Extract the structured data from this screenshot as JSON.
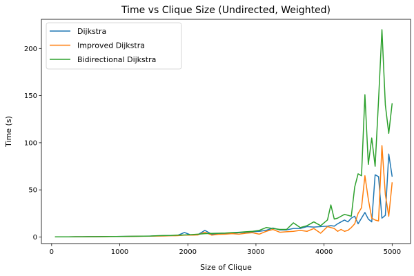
{
  "chart_data": {
    "type": "line",
    "title": "Time vs Clique Size (Undirected, Weighted)",
    "xlabel": "Size of Clique",
    "ylabel": "Time (s)",
    "xlim": [
      -150,
      5270
    ],
    "ylim": [
      -7,
      231
    ],
    "xticks": [
      0,
      1000,
      2000,
      3000,
      4000,
      5000
    ],
    "yticks": [
      0,
      50,
      100,
      150,
      200
    ],
    "grid": false,
    "legend_position": "top-left",
    "x": [
      50,
      150,
      250,
      350,
      450,
      550,
      650,
      750,
      850,
      950,
      1050,
      1150,
      1250,
      1350,
      1450,
      1550,
      1650,
      1750,
      1850,
      1950,
      2050,
      2150,
      2250,
      2350,
      2450,
      2550,
      2650,
      2750,
      2850,
      2950,
      3050,
      3150,
      3250,
      3350,
      3450,
      3550,
      3650,
      3750,
      3850,
      3950,
      4050,
      4100,
      4150,
      4200,
      4250,
      4300,
      4350,
      4400,
      4450,
      4500,
      4550,
      4600,
      4650,
      4700,
      4750,
      4800,
      4850,
      4900,
      4950,
      5000
    ],
    "series": [
      {
        "name": "Dijkstra",
        "color": "#1f77b4",
        "values": [
          0.1,
          0.1,
          0.1,
          0.2,
          0.2,
          0.3,
          0.3,
          0.4,
          0.5,
          0.5,
          0.6,
          0.7,
          0.8,
          0.9,
          1.0,
          1.2,
          1.4,
          1.5,
          1.7,
          4.8,
          2.0,
          2.5,
          7.0,
          3.0,
          3.3,
          3.5,
          4.0,
          4.5,
          5.0,
          5.5,
          6.0,
          7.0,
          9.5,
          7.5,
          7.5,
          9.0,
          9.0,
          11.0,
          10.5,
          11.0,
          11.5,
          12.0,
          11.5,
          14.0,
          16.0,
          18.0,
          16.0,
          20.0,
          22.0,
          14.0,
          20.0,
          26.0,
          19.0,
          16.0,
          66.0,
          64.0,
          20.0,
          23.0,
          88.0,
          64.0
        ]
      },
      {
        "name": "Improved Dijkstra",
        "color": "#ff7f0e",
        "values": [
          0.1,
          0.1,
          0.1,
          0.2,
          0.2,
          0.2,
          0.3,
          0.3,
          0.4,
          0.5,
          0.5,
          0.6,
          0.7,
          0.8,
          0.9,
          1.0,
          1.1,
          1.3,
          1.4,
          2.0,
          2.0,
          2.2,
          5.0,
          2.0,
          2.8,
          3.0,
          3.5,
          3.0,
          4.0,
          4.5,
          3.0,
          6.0,
          8.0,
          5.0,
          5.5,
          6.0,
          7.0,
          6.0,
          9.0,
          4.0,
          11.0,
          10.0,
          9.0,
          6.0,
          8.0,
          6.0,
          7.0,
          10.0,
          14.0,
          25.0,
          31.0,
          65.0,
          40.0,
          20.0,
          18.0,
          17.0,
          97.0,
          45.0,
          22.0,
          58.0
        ]
      },
      {
        "name": "Bidirectional Dijkstra",
        "color": "#2ca02c",
        "values": [
          0.1,
          0.1,
          0.1,
          0.2,
          0.2,
          0.3,
          0.3,
          0.4,
          0.5,
          0.5,
          0.6,
          0.7,
          0.8,
          0.9,
          1.0,
          1.3,
          1.5,
          1.6,
          2.0,
          2.2,
          2.5,
          3.0,
          3.5,
          3.8,
          4.0,
          4.2,
          4.6,
          5.0,
          5.5,
          6.0,
          7.0,
          10.0,
          9.0,
          8.0,
          8.0,
          15.0,
          10.0,
          12.0,
          16.0,
          12.0,
          18.0,
          34.0,
          19.0,
          20.0,
          22.0,
          24.0,
          23.0,
          22.0,
          53.0,
          67.0,
          65.0,
          151.0,
          77.0,
          105.0,
          75.0,
          145.0,
          220.0,
          140.0,
          110.0,
          142.0
        ]
      }
    ]
  }
}
